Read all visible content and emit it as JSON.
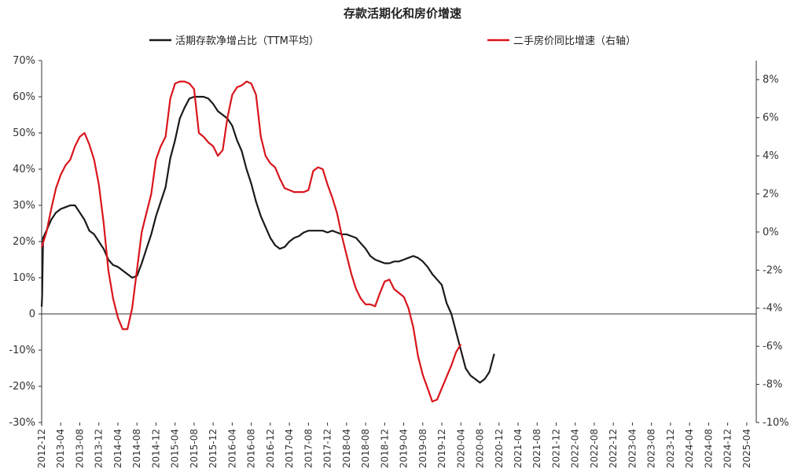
{
  "chart_data": {
    "type": "line",
    "title": "存款活期化和房价增速",
    "xlabel": "",
    "ylabel": "",
    "x_ticks": [
      "2012-12",
      "2013-04",
      "2013-08",
      "2013-12",
      "2014-04",
      "2014-08",
      "2014-12",
      "2015-04",
      "2015-08",
      "2015-12",
      "2016-04",
      "2016-08",
      "2016-12",
      "2017-04",
      "2017-08",
      "2017-12",
      "2018-04",
      "2018-08",
      "2018-12",
      "2019-04",
      "2019-08",
      "2019-12",
      "2020-04",
      "2020-08",
      "2020-12",
      "2021-04",
      "2021-08",
      "2021-12",
      "2022-04",
      "2022-08",
      "2022-12",
      "2023-04",
      "2023-08",
      "2023-12",
      "2024-04",
      "2024-08",
      "2024-12",
      "2025-04"
    ],
    "y_left": {
      "min": -30,
      "max": 70,
      "ticks": [
        "70%",
        "60%",
        "50%",
        "40%",
        "30%",
        "20%",
        "10%",
        "0",
        "-10%",
        "-20%",
        "-30%"
      ]
    },
    "y_right": {
      "min": -10,
      "max": 9,
      "ticks": [
        "8%",
        "6%",
        "4%",
        "2%",
        "0%",
        "-2%",
        "-4%",
        "-6%",
        "-8%",
        "-10%"
      ]
    },
    "legend_position": "top",
    "series": [
      {
        "name": "活期存款净增占比（TTM平均）",
        "axis": "left",
        "color": "#1a1a1a",
        "points": [
          [
            0,
            2
          ],
          [
            0.1,
            5
          ],
          [
            0.3,
            21
          ],
          [
            1,
            23
          ],
          [
            2,
            26
          ],
          [
            3,
            28
          ],
          [
            4,
            29
          ],
          [
            5,
            29.5
          ],
          [
            6,
            30
          ],
          [
            7,
            30
          ],
          [
            8,
            28
          ],
          [
            9,
            26
          ],
          [
            10,
            23
          ],
          [
            11,
            22
          ],
          [
            12,
            20
          ],
          [
            13,
            18
          ],
          [
            14,
            15
          ],
          [
            15,
            13.5
          ],
          [
            16,
            13
          ],
          [
            17,
            12
          ],
          [
            18,
            11
          ],
          [
            19,
            10
          ],
          [
            20,
            10.5
          ],
          [
            21,
            14
          ],
          [
            22,
            18
          ],
          [
            23,
            22
          ],
          [
            24,
            27
          ],
          [
            25,
            31
          ],
          [
            26,
            35
          ],
          [
            27,
            43
          ],
          [
            28,
            48
          ],
          [
            29,
            54
          ],
          [
            30,
            57
          ],
          [
            31,
            59.5
          ],
          [
            32,
            60
          ],
          [
            33,
            60
          ],
          [
            34,
            60
          ],
          [
            35,
            59.5
          ],
          [
            36,
            58
          ],
          [
            37,
            56
          ],
          [
            38,
            55
          ],
          [
            39,
            54
          ],
          [
            40,
            52
          ],
          [
            41,
            48
          ],
          [
            42,
            45
          ],
          [
            43,
            40
          ],
          [
            44,
            36
          ],
          [
            45,
            31
          ],
          [
            46,
            27
          ],
          [
            47,
            24
          ],
          [
            48,
            21
          ],
          [
            49,
            19
          ],
          [
            50,
            18
          ],
          [
            51,
            18.5
          ],
          [
            52,
            20
          ],
          [
            53,
            21
          ],
          [
            54,
            21.5
          ],
          [
            55,
            22.5
          ],
          [
            56,
            23
          ],
          [
            57,
            23
          ],
          [
            58,
            23
          ],
          [
            59,
            23
          ],
          [
            60,
            22.5
          ],
          [
            61,
            23
          ],
          [
            62,
            22.5
          ],
          [
            63,
            22
          ],
          [
            64,
            22
          ],
          [
            65,
            21.5
          ],
          [
            66,
            21
          ],
          [
            67,
            19.5
          ],
          [
            68,
            18
          ],
          [
            69,
            16
          ],
          [
            70,
            15
          ],
          [
            71,
            14.5
          ],
          [
            72,
            14
          ],
          [
            73,
            14
          ],
          [
            74,
            14.5
          ],
          [
            75,
            14.5
          ],
          [
            76,
            15
          ],
          [
            77,
            15.5
          ],
          [
            78,
            16
          ],
          [
            79,
            15.5
          ],
          [
            80,
            14.5
          ],
          [
            81,
            13
          ],
          [
            82,
            11
          ],
          [
            83,
            9.5
          ],
          [
            84,
            8
          ],
          [
            85,
            3
          ],
          [
            86,
            0
          ],
          [
            87,
            -5
          ],
          [
            88,
            -10
          ],
          [
            89,
            -15
          ],
          [
            90,
            -17
          ],
          [
            91,
            -18
          ],
          [
            92,
            -19
          ],
          [
            93,
            -18
          ],
          [
            94,
            -16
          ],
          [
            95,
            -11
          ]
        ]
      },
      {
        "name": "二手房价同比增速（右轴）",
        "axis": "right",
        "color": "#d9151c",
        "points": [
          [
            0,
            -0.8
          ],
          [
            1,
            0
          ],
          [
            2,
            1.2
          ],
          [
            3,
            2.3
          ],
          [
            4,
            3
          ],
          [
            5,
            3.5
          ],
          [
            6,
            3.8
          ],
          [
            7,
            4.5
          ],
          [
            8,
            5
          ],
          [
            9,
            5.2
          ],
          [
            10,
            4.6
          ],
          [
            11,
            3.8
          ],
          [
            12,
            2.5
          ],
          [
            13,
            0.5
          ],
          [
            14,
            -2
          ],
          [
            15,
            -3.5
          ],
          [
            16,
            -4.5
          ],
          [
            17,
            -5.1
          ],
          [
            18,
            -5.1
          ],
          [
            19,
            -4
          ],
          [
            20,
            -2
          ],
          [
            21,
            0
          ],
          [
            22,
            1
          ],
          [
            23,
            2
          ],
          [
            24,
            3.8
          ],
          [
            25,
            4.5
          ],
          [
            26,
            5
          ],
          [
            27,
            7
          ],
          [
            28,
            7.8
          ],
          [
            29,
            7.9
          ],
          [
            30,
            7.9
          ],
          [
            31,
            7.8
          ],
          [
            32,
            7.5
          ],
          [
            33,
            5.2
          ],
          [
            34,
            5
          ],
          [
            35,
            4.7
          ],
          [
            36,
            4.5
          ],
          [
            37,
            4
          ],
          [
            38,
            4.3
          ],
          [
            39,
            6
          ],
          [
            40,
            7.2
          ],
          [
            41,
            7.6
          ],
          [
            42,
            7.7
          ],
          [
            43,
            7.9
          ],
          [
            44,
            7.8
          ],
          [
            45,
            7.2
          ],
          [
            46,
            5
          ],
          [
            47,
            4
          ],
          [
            48,
            3.6
          ],
          [
            49,
            3.4
          ],
          [
            50,
            2.8
          ],
          [
            51,
            2.3
          ],
          [
            52,
            2.2
          ],
          [
            53,
            2.1
          ],
          [
            54,
            2.1
          ],
          [
            55,
            2.1
          ],
          [
            56,
            2.2
          ],
          [
            57,
            3.2
          ],
          [
            58,
            3.4
          ],
          [
            59,
            3.3
          ],
          [
            60,
            2.5
          ],
          [
            61,
            1.8
          ],
          [
            62,
            1
          ],
          [
            63,
            -0.2
          ],
          [
            64,
            -1.2
          ],
          [
            65,
            -2.2
          ],
          [
            66,
            -3
          ],
          [
            67,
            -3.5
          ],
          [
            68,
            -3.8
          ],
          [
            69,
            -3.8
          ],
          [
            70,
            -3.9
          ],
          [
            71,
            -3.2
          ],
          [
            72,
            -2.6
          ],
          [
            73,
            -2.5
          ],
          [
            74,
            -3
          ],
          [
            75,
            -3.2
          ],
          [
            76,
            -3.4
          ],
          [
            77,
            -4
          ],
          [
            78,
            -5
          ],
          [
            79,
            -6.5
          ],
          [
            80,
            -7.5
          ],
          [
            81,
            -8.2
          ],
          [
            82,
            -8.9
          ],
          [
            83,
            -8.8
          ],
          [
            84,
            -8.2
          ],
          [
            85,
            -7.6
          ],
          [
            86,
            -7
          ],
          [
            87,
            -6.3
          ],
          [
            88,
            -5.9
          ]
        ]
      }
    ]
  }
}
